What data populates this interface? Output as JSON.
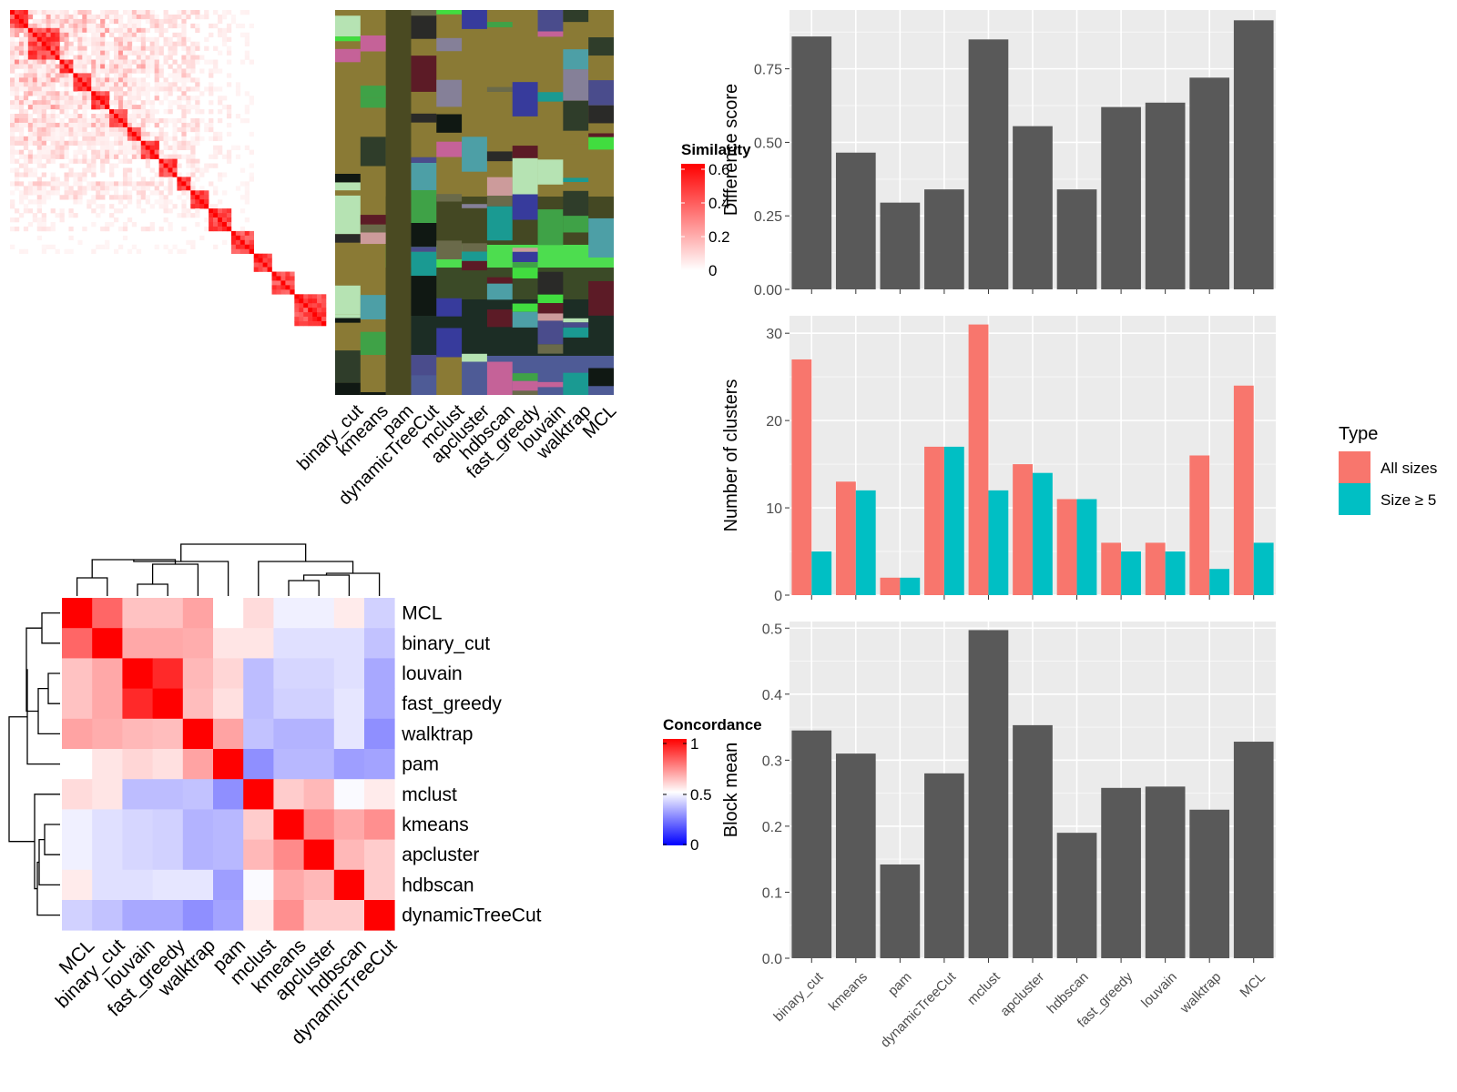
{
  "methods_order": [
    "binary_cut",
    "kmeans",
    "pam",
    "dynamicTreeCut",
    "mclust",
    "apcluster",
    "hdbscan",
    "fast_greedy",
    "louvain",
    "walktrap",
    "MCL"
  ],
  "similarity_legend": {
    "title": "Similarity",
    "ticks": [
      "0.6",
      "0.4",
      "0.2",
      "0"
    ],
    "colors": [
      "#ffffff",
      "#ff0000"
    ]
  },
  "concordance_legend": {
    "title": "Concordance",
    "ticks": [
      "1",
      "0.5",
      "0"
    ],
    "colors": [
      "#0000ff",
      "#ffffff",
      "#ff0000"
    ]
  },
  "chart_data": [
    {
      "type": "heatmap",
      "name": "similarity-heatmap",
      "title": "",
      "legend_title": "Similarity",
      "value_range": [
        0,
        0.6
      ],
      "n_terms": 200,
      "diagonal_blocks": 16
    },
    {
      "type": "heatmap",
      "name": "cluster-assignment-heatmap",
      "categories": [
        "binary_cut",
        "kmeans",
        "pam",
        "dynamicTreeCut",
        "mclust",
        "apcluster",
        "hdbscan",
        "fast_greedy",
        "louvain",
        "walktrap",
        "MCL"
      ]
    },
    {
      "type": "heatmap",
      "name": "concordance-heatmap",
      "legend_title": "Concordance",
      "value_range": [
        0,
        1
      ],
      "rows": [
        "MCL",
        "binary_cut",
        "louvain",
        "fast_greedy",
        "walktrap",
        "pam",
        "mclust",
        "kmeans",
        "apcluster",
        "hdbscan",
        "dynamicTreeCut"
      ],
      "columns": [
        "MCL",
        "binary_cut",
        "louvain",
        "fast_greedy",
        "walktrap",
        "pam",
        "mclust",
        "kmeans",
        "apcluster",
        "hdbscan",
        "dynamicTreeCut"
      ],
      "values": [
        [
          1.0,
          0.8,
          0.62,
          0.62,
          0.68,
          0.5,
          0.57,
          0.47,
          0.47,
          0.54,
          0.41
        ],
        [
          0.8,
          1.0,
          0.67,
          0.67,
          0.66,
          0.55,
          0.55,
          0.44,
          0.44,
          0.44,
          0.38
        ],
        [
          0.62,
          0.67,
          1.0,
          0.92,
          0.64,
          0.58,
          0.37,
          0.42,
          0.42,
          0.44,
          0.33
        ],
        [
          0.62,
          0.67,
          0.92,
          1.0,
          0.63,
          0.56,
          0.37,
          0.41,
          0.41,
          0.45,
          0.33
        ],
        [
          0.68,
          0.66,
          0.64,
          0.63,
          1.0,
          0.68,
          0.38,
          0.35,
          0.35,
          0.45,
          0.28
        ],
        [
          0.5,
          0.55,
          0.58,
          0.56,
          0.68,
          1.0,
          0.28,
          0.36,
          0.36,
          0.31,
          0.32
        ],
        [
          0.57,
          0.55,
          0.37,
          0.37,
          0.38,
          0.28,
          1.0,
          0.6,
          0.64,
          0.49,
          0.54
        ],
        [
          0.47,
          0.44,
          0.42,
          0.41,
          0.35,
          0.36,
          0.6,
          1.0,
          0.73,
          0.67,
          0.72
        ],
        [
          0.47,
          0.44,
          0.42,
          0.41,
          0.35,
          0.36,
          0.64,
          0.73,
          1.0,
          0.64,
          0.6
        ],
        [
          0.54,
          0.44,
          0.44,
          0.45,
          0.45,
          0.31,
          0.49,
          0.67,
          0.64,
          1.0,
          0.6
        ],
        [
          0.41,
          0.38,
          0.33,
          0.33,
          0.28,
          0.32,
          0.54,
          0.72,
          0.6,
          0.6,
          1.0
        ]
      ]
    },
    {
      "type": "bar",
      "name": "difference-score",
      "categories": [
        "binary_cut",
        "kmeans",
        "pam",
        "dynamicTreeCut",
        "mclust",
        "apcluster",
        "hdbscan",
        "fast_greedy",
        "louvain",
        "walktrap",
        "MCL"
      ],
      "values": [
        0.86,
        0.465,
        0.295,
        0.34,
        0.85,
        0.555,
        0.34,
        0.62,
        0.635,
        0.72,
        0.915
      ],
      "ylabel": "Difference score",
      "ylim": [
        0,
        0.95
      ],
      "yticks": [
        "0.00",
        "0.25",
        "0.50",
        "0.75"
      ]
    },
    {
      "type": "bar",
      "name": "number-of-clusters",
      "categories": [
        "binary_cut",
        "kmeans",
        "pam",
        "dynamicTreeCut",
        "mclust",
        "apcluster",
        "hdbscan",
        "fast_greedy",
        "louvain",
        "walktrap",
        "MCL"
      ],
      "ylabel": "Number of clusters",
      "ylim": [
        0,
        32
      ],
      "yticks": [
        "0",
        "10",
        "20",
        "30"
      ],
      "legend_title": "Type",
      "legend_position": "right",
      "series": [
        {
          "name": "All sizes",
          "color": "#F8766D",
          "values": [
            27,
            13,
            2,
            17,
            31,
            15,
            11,
            6,
            6,
            16,
            24
          ]
        },
        {
          "name": "Size ≥ 5",
          "color": "#00BFC4",
          "values": [
            5,
            12,
            2,
            17,
            12,
            14,
            11,
            5,
            5,
            3,
            6
          ]
        }
      ]
    },
    {
      "type": "bar",
      "name": "block-mean",
      "categories": [
        "binary_cut",
        "kmeans",
        "pam",
        "dynamicTreeCut",
        "mclust",
        "apcluster",
        "hdbscan",
        "fast_greedy",
        "louvain",
        "walktrap",
        "MCL"
      ],
      "values": [
        0.345,
        0.31,
        0.142,
        0.28,
        0.497,
        0.353,
        0.19,
        0.258,
        0.26,
        0.225,
        0.328
      ],
      "ylabel": "Block mean",
      "ylim": [
        0,
        0.51
      ],
      "yticks": [
        "0.0",
        "0.1",
        "0.2",
        "0.3",
        "0.4",
        "0.5"
      ]
    }
  ]
}
